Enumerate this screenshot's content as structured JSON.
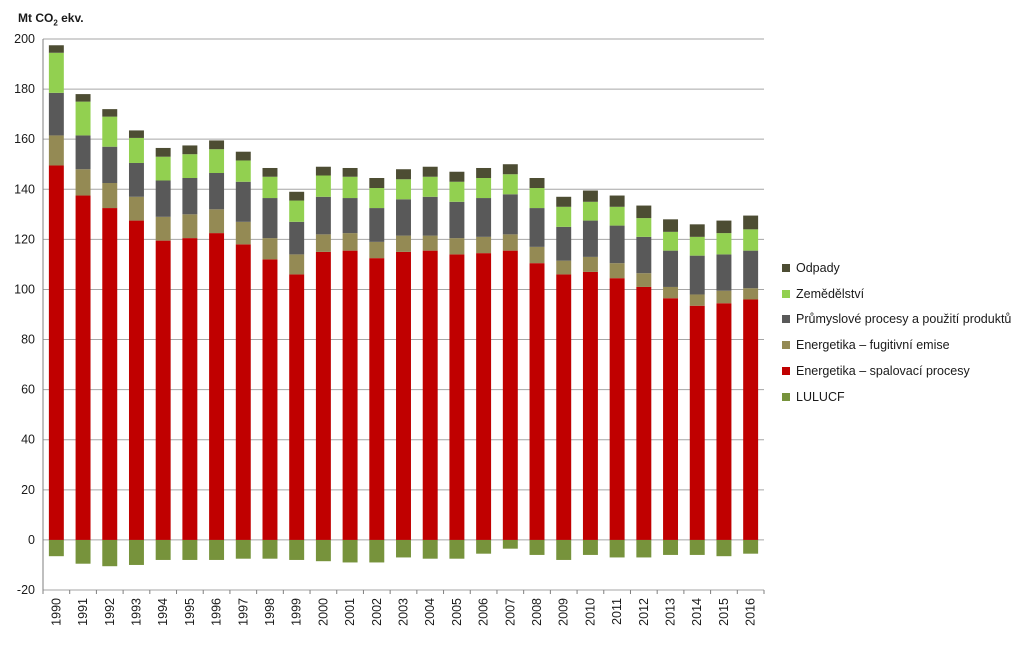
{
  "chart_data": {
    "type": "stacked-bar",
    "ylabel_prefix": "Mt CO",
    "ylabel_sub": "2",
    "ylabel_suffix": " ekv.",
    "ylim": [
      -20,
      200
    ],
    "yticks": [
      -20,
      0,
      20,
      40,
      60,
      80,
      100,
      120,
      140,
      160,
      180,
      200
    ],
    "grid": true,
    "legend_position": "right",
    "categories": [
      "1990",
      "1991",
      "1992",
      "1993",
      "1994",
      "1995",
      "1996",
      "1997",
      "1998",
      "1999",
      "2000",
      "2001",
      "2002",
      "2003",
      "2004",
      "2005",
      "2006",
      "2007",
      "2008",
      "2009",
      "2010",
      "2011",
      "2012",
      "2013",
      "2014",
      "2015",
      "2016"
    ],
    "series": [
      {
        "name": "LULUCF",
        "color": "#77933c",
        "values": [
          -6.5,
          -9.5,
          -10.5,
          -10,
          -8,
          -8,
          -8,
          -7.5,
          -7.5,
          -8,
          -8.5,
          -9,
          -9,
          -7,
          -7.5,
          -7.5,
          -5.5,
          -3.5,
          -6,
          -8,
          -6,
          -7,
          -7,
          -6,
          -6,
          -6.5,
          -5.5
        ]
      },
      {
        "name": "Energetika – spalovací procesy",
        "color": "#c00000",
        "values": [
          149.5,
          137.5,
          132.5,
          127.5,
          119.5,
          120.5,
          122.5,
          118,
          112,
          106,
          115,
          115.5,
          112.5,
          115,
          115.5,
          114,
          114.5,
          115.5,
          110.5,
          106,
          107,
          104.5,
          101,
          96.5,
          93.5,
          94.5,
          96
        ]
      },
      {
        "name": "Energetika – fugitivní emise",
        "color": "#948a54",
        "values": [
          12,
          10.5,
          10,
          9.5,
          9.5,
          9.5,
          9.5,
          9,
          8.5,
          8,
          7,
          7,
          6.5,
          6.5,
          6,
          6.5,
          6.5,
          6.5,
          6.5,
          5.5,
          6,
          6,
          5.5,
          4.5,
          4.5,
          5,
          4.5
        ]
      },
      {
        "name": "Průmyslové procesy a použití produktů",
        "color": "#595959",
        "values": [
          17,
          13.5,
          14.5,
          13.5,
          14.5,
          14.5,
          14.5,
          16,
          16,
          13,
          15,
          14,
          13.5,
          14.5,
          15.5,
          14.5,
          15.5,
          16,
          15.5,
          13.5,
          14.5,
          15,
          14.5,
          14.5,
          15.5,
          14.5,
          15
        ]
      },
      {
        "name": "Zemědělství",
        "color": "#92d050",
        "values": [
          16,
          13.5,
          12,
          10,
          9.5,
          9.5,
          9.5,
          8.5,
          8.5,
          8.5,
          8.5,
          8.5,
          8,
          8,
          8,
          8,
          8,
          8,
          8,
          8,
          7.5,
          7.5,
          7.5,
          7.5,
          7.5,
          8.5,
          8.5
        ]
      },
      {
        "name": "Odpady",
        "color": "#4d4d33",
        "values": [
          3,
          3,
          3,
          3,
          3.5,
          3.5,
          3.5,
          3.5,
          3.5,
          3.5,
          3.5,
          3.5,
          4,
          4,
          4,
          4,
          4,
          4,
          4,
          4,
          4.5,
          4.5,
          5,
          5,
          5,
          5,
          5.5
        ]
      }
    ],
    "legend_order": [
      5,
      4,
      3,
      2,
      1,
      0
    ]
  }
}
